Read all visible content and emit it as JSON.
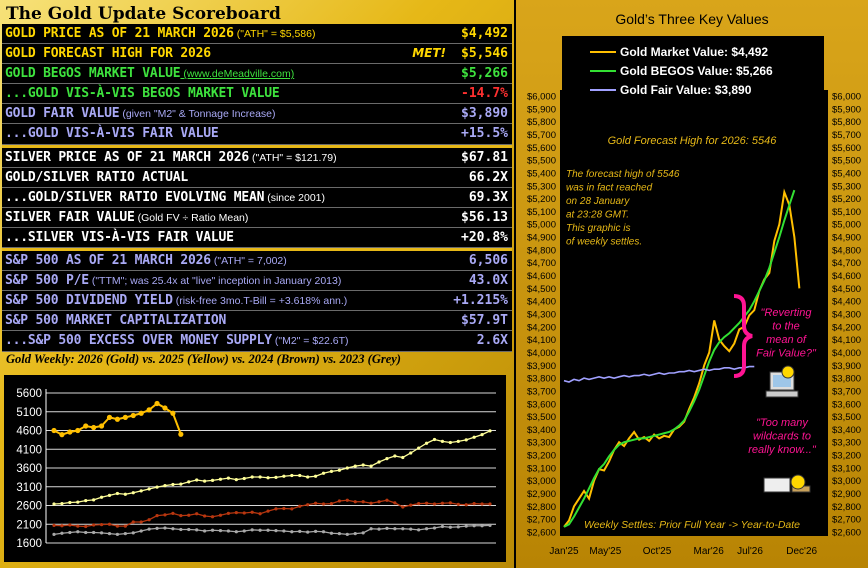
{
  "scoreboard": {
    "title": "The Gold Update Scoreboard",
    "rows": [
      {
        "label": "GOLD PRICE AS OF 21 MARCH 2026",
        "note": " (\"ATH\" = $5,586)",
        "value": "$4,492",
        "color": "c-yellow",
        "sepAfter": false
      },
      {
        "label": "GOLD FORECAST HIGH FOR 2026",
        "note": "",
        "value": "$5,546",
        "color": "c-yellow",
        "met": "MET!",
        "sepAfter": false
      },
      {
        "label": "GOLD BEGOS MARKET VALUE",
        "note": " (www.deMeadville.com)",
        "value": "$5,266",
        "color": "c-green",
        "link": true,
        "sepAfter": false
      },
      {
        "label": "...GOLD VIS-À-VIS BEGOS MARKET VALUE",
        "note": "",
        "value": "-14.7%",
        "color": "c-green",
        "valColor": "c-red",
        "sepAfter": false
      },
      {
        "label": "GOLD FAIR VALUE",
        "note": " (given \"M2\" & Tonnage Increase)",
        "value": "$3,890",
        "color": "c-blue",
        "sepAfter": false
      },
      {
        "label": "...GOLD VIS-À-VIS FAIR VALUE",
        "note": "",
        "value": "+15.5%",
        "color": "c-blue",
        "sepAfter": true
      },
      {
        "label": "SILVER PRICE AS OF 21 MARCH 2026",
        "note": " (\"ATH\" = $121.79)",
        "value": "$67.81",
        "color": "c-white",
        "sepAfter": false
      },
      {
        "label": "GOLD/SILVER RATIO ACTUAL",
        "note": "",
        "value": "66.2X",
        "color": "c-white",
        "sepAfter": false
      },
      {
        "label": "...GOLD/SILVER RATIO EVOLVING MEAN",
        "note": " (since 2001)",
        "value": "69.3X",
        "color": "c-white",
        "sepAfter": false
      },
      {
        "label": "SILVER FAIR VALUE",
        "note": " (Gold FV ÷ Ratio Mean)",
        "value": "$56.13",
        "color": "c-white",
        "sepAfter": false
      },
      {
        "label": "...SILVER VIS-À-VIS FAIR VALUE",
        "note": "",
        "value": "+20.8%",
        "color": "c-white",
        "sepAfter": true
      },
      {
        "label": "S&P 500 AS OF 21 MARCH 2026",
        "note": " (\"ATH\" = 7,002)",
        "value": "6,506",
        "color": "c-blue",
        "sepAfter": false
      },
      {
        "label": "S&P 500 P/E",
        "note": " (\"TTM\"; was 25.4x at \"live\" inception in January 2013)",
        "value": "43.0X",
        "color": "c-blue",
        "sepAfter": false
      },
      {
        "label": "S&P 500 DIVIDEND YIELD",
        "note": " (risk-free 3mo.T-Bill = +3.618% ann.)",
        "value": "+1.215%",
        "color": "c-blue",
        "sepAfter": false
      },
      {
        "label": "S&P 500 MARKET CAPITALIZATION",
        "note": "",
        "value": "$57.9T",
        "color": "c-blue",
        "sepAfter": false
      },
      {
        "label": "...S&P 500 EXCESS OVER MONEY SUPPLY",
        "note": " (\"M2\" = $22.6T)",
        "value": "2.6X",
        "color": "c-blue",
        "sepAfter": false
      }
    ]
  },
  "weekly": {
    "title": "Gold Weekly:  2026 (Gold) vs. 2025 (Yellow) vs. 2024 (Brown) vs. 2023 (Grey)"
  },
  "chart_data": [
    {
      "type": "line",
      "title": "",
      "ylim": [
        1600,
        5600
      ],
      "yticks": [
        1600,
        2100,
        2600,
        3100,
        3600,
        4100,
        4600,
        5100,
        5600
      ],
      "grid": true,
      "series": [
        {
          "color": "#ffbf00",
          "values": [
            4600,
            4490,
            4560,
            4600,
            4720,
            4680,
            4720,
            4950,
            4900,
            4950,
            5000,
            5060,
            5150,
            5320,
            5200,
            5060,
            4500
          ]
        },
        {
          "color": "#ffff99",
          "values": [
            2640,
            2650,
            2680,
            2690,
            2730,
            2750,
            2820,
            2870,
            2920,
            2900,
            2940,
            2990,
            3040,
            3090,
            3130,
            3160,
            3170,
            3230,
            3280,
            3250,
            3270,
            3300,
            3330,
            3290,
            3320,
            3360,
            3360,
            3340,
            3350,
            3380,
            3400,
            3400,
            3360,
            3380,
            3460,
            3510,
            3540,
            3600,
            3650,
            3680,
            3650,
            3760,
            3850,
            3920,
            3880,
            4000,
            4130,
            4260,
            4360,
            4310,
            4280,
            4310,
            4350,
            4420,
            4490,
            4590
          ]
        },
        {
          "color": "#b8360f",
          "values": [
            2070,
            2060,
            2080,
            2050,
            2040,
            2080,
            2090,
            2100,
            2050,
            2050,
            2160,
            2160,
            2220,
            2330,
            2350,
            2390,
            2330,
            2340,
            2380,
            2320,
            2300,
            2340,
            2390,
            2410,
            2400,
            2420,
            2380,
            2450,
            2510,
            2520,
            2510,
            2580,
            2620,
            2660,
            2640,
            2650,
            2720,
            2740,
            2700,
            2700,
            2660,
            2700,
            2740,
            2670,
            2560,
            2610,
            2650,
            2660,
            2640,
            2660,
            2670,
            2630,
            2620,
            2650,
            2640,
            2640
          ]
        },
        {
          "color": "#a8a8a8",
          "values": [
            1830,
            1860,
            1880,
            1900,
            1880,
            1880,
            1870,
            1850,
            1830,
            1850,
            1870,
            1920,
            1970,
            1990,
            2000,
            1980,
            1960,
            1960,
            1950,
            1920,
            1940,
            1930,
            1920,
            1900,
            1920,
            1950,
            1940,
            1940,
            1930,
            1920,
            1900,
            1910,
            1890,
            1910,
            1900,
            1860,
            1850,
            1830,
            1850,
            1870,
            1980,
            1970,
            1990,
            1980,
            1980,
            1970,
            1950,
            1980,
            2000,
            2040,
            2020,
            2030,
            2050,
            2060,
            2060,
            2070
          ]
        }
      ]
    },
    {
      "type": "line",
      "title": "Gold’s Three Key Values",
      "ylim": [
        2600,
        6000
      ],
      "ytick_labels": [
        "$2,600",
        "$2,700",
        "$2,800",
        "$2,900",
        "$3,000",
        "$3,100",
        "$3,200",
        "$3,300",
        "$3,400",
        "$3,500",
        "$3,600",
        "$3,700",
        "$3,800",
        "$3,900",
        "$4,000",
        "$4,100",
        "$4,200",
        "$4,300",
        "$4,400",
        "$4,500",
        "$4,600",
        "$4,700",
        "$4,800",
        "$4,900",
        "$5,000",
        "$5,100",
        "$5,200",
        "$5,300",
        "$5,400",
        "$5,500",
        "$5,600",
        "$5,700",
        "$5,800",
        "$5,900",
        "$6,000"
      ],
      "x_labels": [
        "Jan'25",
        "May'25",
        "Oct'25",
        "Mar'26",
        "Jul'26",
        "Dec'26"
      ],
      "legend": [
        {
          "name": "Gold Market Value:  $4,492",
          "color": "#ffbf00"
        },
        {
          "name": "Gold BEGOS Value:  $5,266",
          "color": "#33e033"
        },
        {
          "name": "Gold Fair Value:  $3,890",
          "color": "#a0a0ff"
        }
      ],
      "forecast_label": "Gold Forecast High for 2026:  5546",
      "note_forecast": [
        "The forecast high of 5546",
        "was in fact reached",
        "on 28 January",
        "at 23:28 GMT.",
        "This graphic is",
        "of weekly settles."
      ],
      "note_revert": [
        "\"Reverting",
        "to the",
        "mean of",
        "Fair Value?\""
      ],
      "note_wildcards": [
        "\"Too many",
        "wildcards to",
        "really know...\""
      ],
      "footer": "Weekly Settles:  Prior Full Year -> Year-to-Date",
      "series": [
        {
          "color": "#ffbf00",
          "values": [
            2640,
            2690,
            2800,
            2860,
            2920,
            2860,
            3000,
            3090,
            3080,
            3150,
            3240,
            3300,
            3270,
            3330,
            3380,
            3320,
            3340,
            3310,
            3360,
            3330,
            3350,
            3340,
            3400,
            3420,
            3460,
            3560,
            3650,
            3760,
            3900,
            4000,
            4250,
            4100,
            4050,
            4010,
            4070,
            4180,
            4200,
            4290,
            4330,
            4480,
            4570,
            4620,
            4870,
            5000,
            5250,
            5150,
            4900,
            4500
          ]
        },
        {
          "color": "#33e033",
          "values": [
            2640,
            2660,
            2720,
            2790,
            2860,
            2940,
            3020,
            3090,
            3130,
            3190,
            3240,
            3280,
            3300,
            3310,
            3320,
            3330,
            3330,
            3340,
            3350,
            3360,
            3370,
            3380,
            3400,
            3430,
            3470,
            3540,
            3620,
            3710,
            3820,
            3930,
            4020,
            4080,
            4120,
            4150,
            4190,
            4230,
            4280,
            4330,
            4400,
            4480,
            4560,
            4660,
            4780,
            4900,
            5030,
            5150,
            5266
          ]
        },
        {
          "color": "#a0a0ff",
          "values": [
            3780,
            3770,
            3790,
            3780,
            3800,
            3790,
            3800,
            3810,
            3800,
            3810,
            3800,
            3810,
            3820,
            3810,
            3820,
            3820,
            3830,
            3820,
            3830,
            3840,
            3830,
            3840,
            3840,
            3850,
            3850,
            3860,
            3850,
            3860,
            3870,
            3860,
            3870,
            3870,
            3880,
            3880,
            3870,
            3880,
            3880,
            3890,
            3890
          ]
        }
      ]
    }
  ]
}
